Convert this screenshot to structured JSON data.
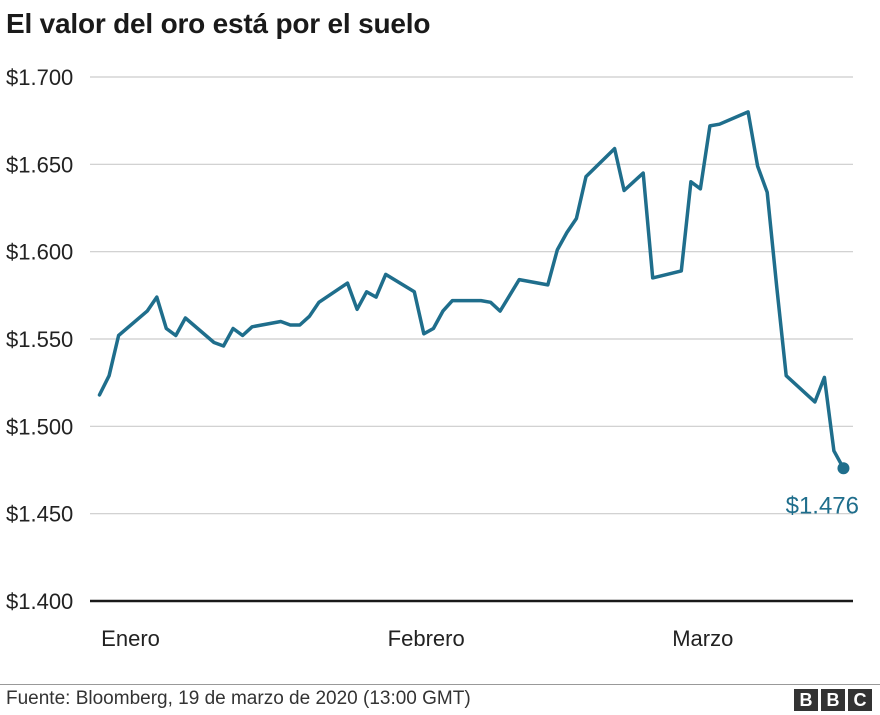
{
  "title": "El valor del oro está por el suelo",
  "source": "Fuente: Bloomberg, 19 de marzo de 2020 (13:00 GMT)",
  "logo_letters": [
    "B",
    "B",
    "C"
  ],
  "colors": {
    "line": "#1f6e8c",
    "grid": "#cccccc",
    "baseline": "#1a1a1a"
  },
  "chart_data": {
    "type": "line",
    "title": "El valor del oro está por el suelo",
    "xlabel": "",
    "ylabel": "",
    "ylim": [
      1400,
      1700
    ],
    "yticks": [
      1400,
      1450,
      1500,
      1550,
      1600,
      1650,
      1700
    ],
    "ytick_labels": [
      "$1.400",
      "$1.450",
      "$1.500",
      "$1.550",
      "$1.600",
      "$1.650",
      "$1.700"
    ],
    "xticks": [
      {
        "label": "Enero",
        "date": "2020-01-01"
      },
      {
        "label": "Febrero",
        "date": "2020-02-01"
      },
      {
        "label": "Marzo",
        "date": "2020-03-01"
      }
    ],
    "xlim": [
      "2019-12-31",
      "2020-03-20"
    ],
    "grid": true,
    "legend": "none",
    "end_label": "$1.476",
    "series": [
      {
        "points": [
          [
            "2020-01-01",
            1518
          ],
          [
            "2020-01-02",
            1529
          ],
          [
            "2020-01-03",
            1552
          ],
          [
            "2020-01-06",
            1566
          ],
          [
            "2020-01-07",
            1574
          ],
          [
            "2020-01-08",
            1556
          ],
          [
            "2020-01-09",
            1552
          ],
          [
            "2020-01-10",
            1562
          ],
          [
            "2020-01-13",
            1548
          ],
          [
            "2020-01-14",
            1546
          ],
          [
            "2020-01-15",
            1556
          ],
          [
            "2020-01-16",
            1552
          ],
          [
            "2020-01-17",
            1557
          ],
          [
            "2020-01-20",
            1560
          ],
          [
            "2020-01-21",
            1558
          ],
          [
            "2020-01-22",
            1558
          ],
          [
            "2020-01-23",
            1563
          ],
          [
            "2020-01-24",
            1571
          ],
          [
            "2020-01-27",
            1582
          ],
          [
            "2020-01-28",
            1567
          ],
          [
            "2020-01-29",
            1577
          ],
          [
            "2020-01-30",
            1574
          ],
          [
            "2020-01-31",
            1587
          ],
          [
            "2020-02-03",
            1577
          ],
          [
            "2020-02-04",
            1553
          ],
          [
            "2020-02-05",
            1556
          ],
          [
            "2020-02-06",
            1566
          ],
          [
            "2020-02-07",
            1572
          ],
          [
            "2020-02-10",
            1572
          ],
          [
            "2020-02-11",
            1571
          ],
          [
            "2020-02-12",
            1566
          ],
          [
            "2020-02-13",
            1575
          ],
          [
            "2020-02-14",
            1584
          ],
          [
            "2020-02-17",
            1581
          ],
          [
            "2020-02-18",
            1601
          ],
          [
            "2020-02-19",
            1611
          ],
          [
            "2020-02-20",
            1619
          ],
          [
            "2020-02-21",
            1643
          ],
          [
            "2020-02-24",
            1659
          ],
          [
            "2020-02-25",
            1635
          ],
          [
            "2020-02-26",
            1640
          ],
          [
            "2020-02-27",
            1645
          ],
          [
            "2020-02-28",
            1585
          ],
          [
            "2020-03-02",
            1589
          ],
          [
            "2020-03-03",
            1640
          ],
          [
            "2020-03-04",
            1636
          ],
          [
            "2020-03-05",
            1672
          ],
          [
            "2020-03-06",
            1673
          ],
          [
            "2020-03-09",
            1680
          ],
          [
            "2020-03-10",
            1649
          ],
          [
            "2020-03-11",
            1634
          ],
          [
            "2020-03-12",
            1580
          ],
          [
            "2020-03-13",
            1529
          ],
          [
            "2020-03-16",
            1514
          ],
          [
            "2020-03-17",
            1528
          ],
          [
            "2020-03-18",
            1486
          ],
          [
            "2020-03-19",
            1476
          ]
        ]
      }
    ]
  }
}
